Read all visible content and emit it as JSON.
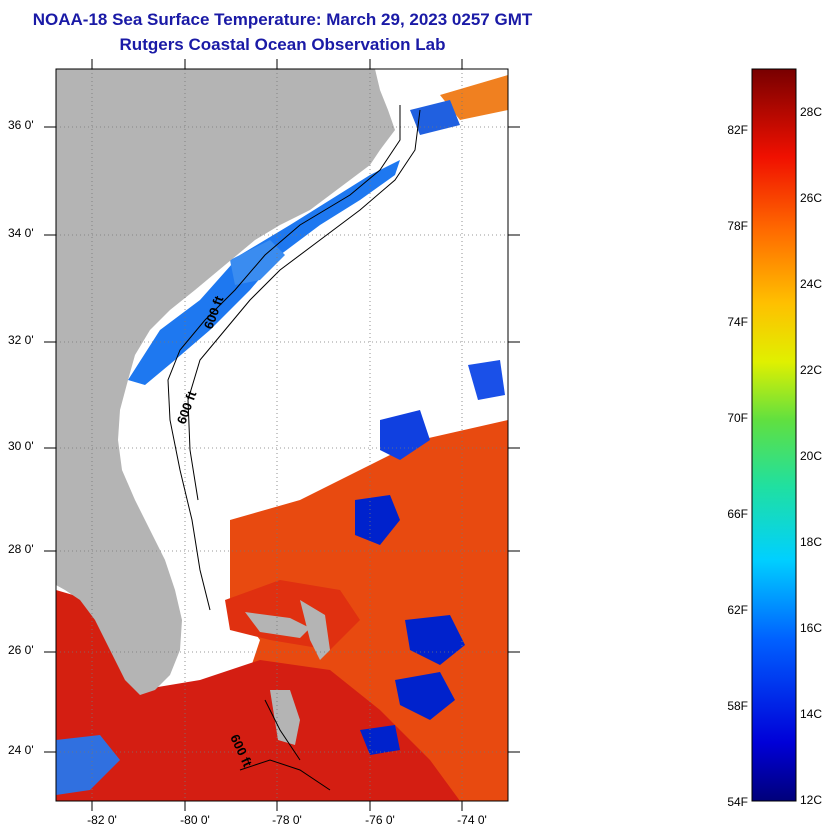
{
  "title": "NOAA-18 Sea Surface Temperature:  March 29, 2023 0257 GMT",
  "subtitle": "Rutgers Coastal Ocean Observation Lab",
  "map": {
    "lat_ticks": [
      "36 0'",
      "34 0'",
      "32 0'",
      "30 0'",
      "28 0'",
      "26 0'",
      "24 0'"
    ],
    "lon_ticks": [
      "-82 0'",
      "-80 0'",
      "-78 0'",
      "-76 0'",
      "-74 0'"
    ],
    "contour_labels": [
      "600 ft",
      "600 ft",
      "600 ft"
    ],
    "colors": {
      "land": "#b4b4b4",
      "cloud": "#ffffff",
      "gulf_stream": "#e8500a",
      "warm": "#d01010"
    }
  },
  "colorbar": {
    "fahrenheit": [
      "82F",
      "78F",
      "74F",
      "70F",
      "66F",
      "62F",
      "58F",
      "54F"
    ],
    "celsius": [
      "28C",
      "26C",
      "24C",
      "22C",
      "20C",
      "18C",
      "16C",
      "14C",
      "12C"
    ],
    "min_c": 12,
    "max_c": 29,
    "min_f": 54,
    "max_f": 84
  }
}
